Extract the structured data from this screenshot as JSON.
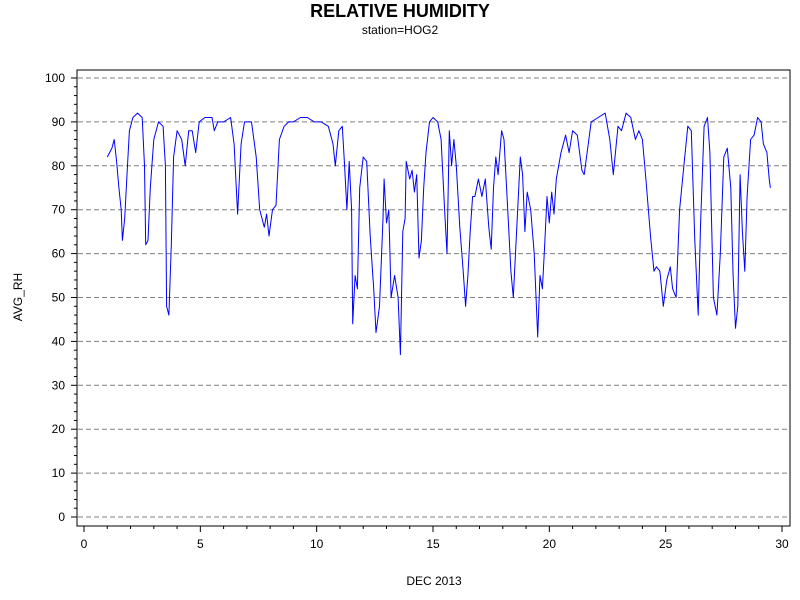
{
  "chart_data": {
    "type": "line",
    "title": "RELATIVE HUMIDITY",
    "subtitle": "station=HOG2",
    "xlabel": "DEC 2013",
    "ylabel": "AVG_RH",
    "xlim": [
      0,
      30
    ],
    "ylim": [
      0,
      100
    ],
    "x_ticks": [
      0,
      5,
      10,
      15,
      20,
      25,
      30
    ],
    "y_ticks": [
      0,
      10,
      20,
      30,
      40,
      50,
      60,
      70,
      80,
      90,
      100
    ],
    "grid": "horizontal dashed",
    "line_color": "#0000ff",
    "series": [
      {
        "points": [
          [
            1.0,
            82
          ],
          [
            1.1,
            83
          ],
          [
            1.2,
            84
          ],
          [
            1.3,
            86
          ],
          [
            1.4,
            81
          ],
          [
            1.5,
            75
          ],
          [
            1.6,
            70
          ],
          [
            1.65,
            63
          ],
          [
            1.75,
            68
          ],
          [
            1.85,
            78
          ],
          [
            1.95,
            88
          ],
          [
            2.1,
            91
          ],
          [
            2.3,
            92
          ],
          [
            2.5,
            91
          ],
          [
            2.6,
            80
          ],
          [
            2.65,
            62
          ],
          [
            2.75,
            63
          ],
          [
            2.85,
            75
          ],
          [
            3.0,
            86
          ],
          [
            3.2,
            90
          ],
          [
            3.4,
            89
          ],
          [
            3.5,
            80
          ],
          [
            3.55,
            48
          ],
          [
            3.65,
            46
          ],
          [
            3.75,
            62
          ],
          [
            3.85,
            82
          ],
          [
            4.0,
            88
          ],
          [
            4.2,
            86
          ],
          [
            4.35,
            80
          ],
          [
            4.5,
            88
          ],
          [
            4.65,
            88
          ],
          [
            4.8,
            83
          ],
          [
            4.95,
            90
          ],
          [
            5.2,
            91
          ],
          [
            5.5,
            91
          ],
          [
            5.6,
            88
          ],
          [
            5.75,
            90
          ],
          [
            6.0,
            90
          ],
          [
            6.3,
            91
          ],
          [
            6.45,
            85
          ],
          [
            6.6,
            69
          ],
          [
            6.75,
            85
          ],
          [
            6.9,
            90
          ],
          [
            7.2,
            90
          ],
          [
            7.4,
            82
          ],
          [
            7.55,
            70
          ],
          [
            7.75,
            66
          ],
          [
            7.85,
            69
          ],
          [
            7.95,
            64
          ],
          [
            8.1,
            70
          ],
          [
            8.25,
            71
          ],
          [
            8.4,
            86
          ],
          [
            8.6,
            89
          ],
          [
            8.8,
            90
          ],
          [
            9.0,
            90
          ],
          [
            9.3,
            91
          ],
          [
            9.6,
            91
          ],
          [
            9.9,
            90
          ],
          [
            10.2,
            90
          ],
          [
            10.5,
            89
          ],
          [
            10.7,
            85
          ],
          [
            10.8,
            80
          ],
          [
            10.95,
            88
          ],
          [
            11.1,
            89
          ],
          [
            11.2,
            80
          ],
          [
            11.3,
            70
          ],
          [
            11.4,
            81
          ],
          [
            11.5,
            70
          ],
          [
            11.55,
            44
          ],
          [
            11.65,
            55
          ],
          [
            11.75,
            52
          ],
          [
            11.85,
            75
          ],
          [
            12.0,
            82
          ],
          [
            12.15,
            81
          ],
          [
            12.3,
            64
          ],
          [
            12.45,
            52
          ],
          [
            12.55,
            42
          ],
          [
            12.7,
            48
          ],
          [
            12.85,
            68
          ],
          [
            12.9,
            77
          ],
          [
            13.0,
            67
          ],
          [
            13.1,
            70
          ],
          [
            13.2,
            50
          ],
          [
            13.35,
            55
          ],
          [
            13.5,
            50
          ],
          [
            13.6,
            37
          ],
          [
            13.7,
            65
          ],
          [
            13.8,
            68
          ],
          [
            13.85,
            81
          ],
          [
            14.0,
            77
          ],
          [
            14.1,
            79
          ],
          [
            14.2,
            74
          ],
          [
            14.3,
            78
          ],
          [
            14.4,
            59
          ],
          [
            14.5,
            63
          ],
          [
            14.6,
            75
          ],
          [
            14.7,
            83
          ],
          [
            14.85,
            90
          ],
          [
            15.0,
            91
          ],
          [
            15.2,
            90
          ],
          [
            15.35,
            86
          ],
          [
            15.5,
            70
          ],
          [
            15.6,
            60
          ],
          [
            15.7,
            88
          ],
          [
            15.8,
            80
          ],
          [
            15.9,
            86
          ],
          [
            16.0,
            80
          ],
          [
            16.15,
            66
          ],
          [
            16.3,
            56
          ],
          [
            16.4,
            48
          ],
          [
            16.5,
            55
          ],
          [
            16.6,
            65
          ],
          [
            16.7,
            73
          ],
          [
            16.8,
            73
          ],
          [
            16.95,
            77
          ],
          [
            17.1,
            73
          ],
          [
            17.25,
            77
          ],
          [
            17.4,
            66
          ],
          [
            17.5,
            61
          ],
          [
            17.6,
            75
          ],
          [
            17.7,
            82
          ],
          [
            17.8,
            78
          ],
          [
            17.95,
            88
          ],
          [
            18.05,
            86
          ],
          [
            18.2,
            71
          ],
          [
            18.35,
            56
          ],
          [
            18.45,
            50
          ],
          [
            18.6,
            66
          ],
          [
            18.75,
            82
          ],
          [
            18.85,
            78
          ],
          [
            18.95,
            65
          ],
          [
            19.05,
            74
          ],
          [
            19.2,
            70
          ],
          [
            19.35,
            60
          ],
          [
            19.5,
            41
          ],
          [
            19.6,
            55
          ],
          [
            19.7,
            52
          ],
          [
            19.8,
            62
          ],
          [
            19.9,
            73
          ],
          [
            20.0,
            67
          ],
          [
            20.1,
            74
          ],
          [
            20.2,
            69
          ],
          [
            20.3,
            77
          ],
          [
            20.5,
            83
          ],
          [
            20.7,
            87
          ],
          [
            20.85,
            83
          ],
          [
            21.0,
            88
          ],
          [
            21.2,
            87
          ],
          [
            21.4,
            79
          ],
          [
            21.5,
            78
          ],
          [
            21.65,
            84
          ],
          [
            21.8,
            90
          ],
          [
            22.1,
            91
          ],
          [
            22.4,
            92
          ],
          [
            22.6,
            86
          ],
          [
            22.75,
            78
          ],
          [
            22.95,
            89
          ],
          [
            23.1,
            88
          ],
          [
            23.3,
            92
          ],
          [
            23.5,
            91
          ],
          [
            23.7,
            86
          ],
          [
            23.85,
            88
          ],
          [
            24.0,
            86
          ],
          [
            24.15,
            77
          ],
          [
            24.35,
            64
          ],
          [
            24.5,
            56
          ],
          [
            24.6,
            57
          ],
          [
            24.75,
            56
          ],
          [
            24.9,
            48
          ],
          [
            25.05,
            54
          ],
          [
            25.2,
            57
          ],
          [
            25.3,
            52
          ],
          [
            25.45,
            50
          ],
          [
            25.6,
            70
          ],
          [
            25.8,
            81
          ],
          [
            25.95,
            89
          ],
          [
            26.1,
            88
          ],
          [
            26.25,
            63
          ],
          [
            26.4,
            46
          ],
          [
            26.5,
            67
          ],
          [
            26.65,
            89
          ],
          [
            26.8,
            91
          ],
          [
            26.9,
            83
          ],
          [
            27.05,
            50
          ],
          [
            27.2,
            46
          ],
          [
            27.35,
            60
          ],
          [
            27.5,
            82
          ],
          [
            27.65,
            84
          ],
          [
            27.8,
            75
          ],
          [
            27.9,
            55
          ],
          [
            28.0,
            43
          ],
          [
            28.1,
            48
          ],
          [
            28.2,
            78
          ],
          [
            28.3,
            65
          ],
          [
            28.4,
            56
          ],
          [
            28.5,
            73
          ],
          [
            28.65,
            86
          ],
          [
            28.8,
            87
          ],
          [
            28.95,
            91
          ],
          [
            29.1,
            90
          ],
          [
            29.2,
            85
          ],
          [
            29.35,
            83
          ],
          [
            29.45,
            77
          ],
          [
            29.5,
            75
          ]
        ]
      }
    ]
  }
}
